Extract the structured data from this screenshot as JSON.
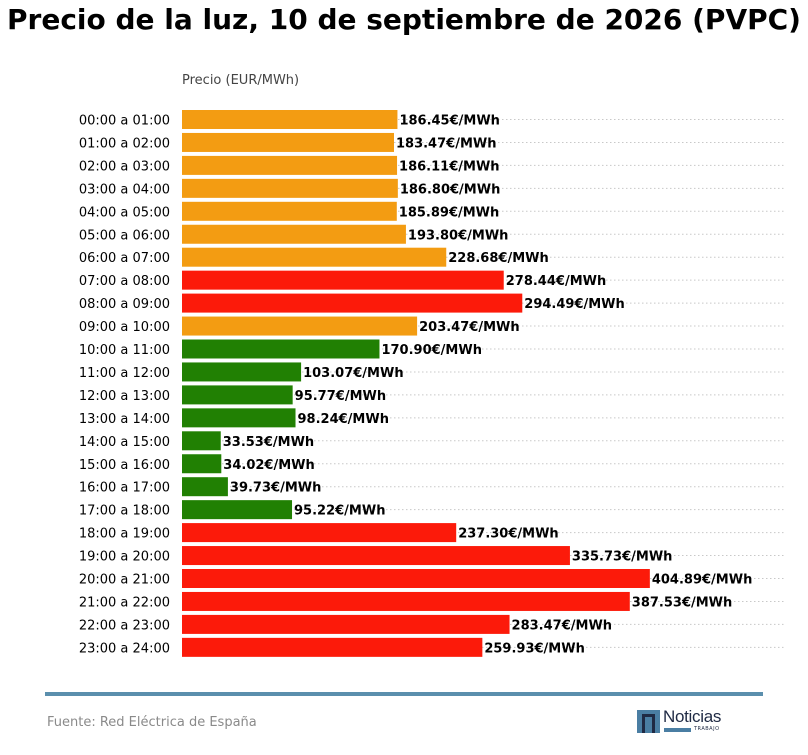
{
  "chart_data": {
    "type": "bar",
    "orientation": "horizontal",
    "title": "Precio de la luz, 10 de septiembre de 2026 (PVPC)",
    "xlabel": "Precio (EUR/MWh)",
    "ylabel": "",
    "value_suffix": "€/MWh",
    "xlim": [
      0,
      410
    ],
    "grid": "dotted horizontal lines per category",
    "legend": "none",
    "categories": [
      "00:00 a 01:00",
      "01:00 a 02:00",
      "02:00 a 03:00",
      "03:00 a 04:00",
      "04:00 a 05:00",
      "05:00 a 06:00",
      "06:00 a 07:00",
      "07:00 a 08:00",
      "08:00 a 09:00",
      "09:00 a 10:00",
      "10:00 a 11:00",
      "11:00 a 12:00",
      "12:00 a 13:00",
      "13:00 a 14:00",
      "14:00 a 15:00",
      "15:00 a 16:00",
      "16:00 a 17:00",
      "17:00 a 18:00",
      "18:00 a 19:00",
      "19:00 a 20:00",
      "20:00 a 21:00",
      "21:00 a 22:00",
      "22:00 a 23:00",
      "23:00 a 24:00"
    ],
    "values": [
      186.45,
      183.47,
      186.11,
      186.8,
      185.89,
      193.8,
      228.68,
      278.44,
      294.49,
      203.47,
      170.9,
      103.07,
      95.77,
      98.24,
      33.53,
      34.02,
      39.73,
      95.22,
      237.3,
      335.73,
      404.89,
      387.53,
      283.47,
      259.93
    ],
    "value_labels": [
      "186.45€/MWh",
      "183.47€/MWh",
      "186.11€/MWh",
      "186.80€/MWh",
      "185.89€/MWh",
      "193.80€/MWh",
      "228.68€/MWh",
      "278.44€/MWh",
      "294.49€/MWh",
      "203.47€/MWh",
      "170.90€/MWh",
      "103.07€/MWh",
      "95.77€/MWh",
      "98.24€/MWh",
      "33.53€/MWh",
      "34.02€/MWh",
      "39.73€/MWh",
      "95.22€/MWh",
      "237.30€/MWh",
      "335.73€/MWh",
      "404.89€/MWh",
      "387.53€/MWh",
      "283.47€/MWh",
      "259.93€/MWh"
    ],
    "bar_colors": [
      "#f39c12",
      "#f39c12",
      "#f39c12",
      "#f39c12",
      "#f39c12",
      "#f39c12",
      "#f39c12",
      "#fc1a0a",
      "#fc1a0a",
      "#f39c12",
      "#218003",
      "#218003",
      "#218003",
      "#218003",
      "#218003",
      "#218003",
      "#218003",
      "#218003",
      "#fc1a0a",
      "#fc1a0a",
      "#fc1a0a",
      "#fc1a0a",
      "#fc1a0a",
      "#fc1a0a"
    ]
  },
  "footer": {
    "source": "Fuente: Red Eléctrica de España",
    "logo_text": "Noticias",
    "logo_subtext": "TRABAJO",
    "accent_color": "#5b8fad"
  }
}
